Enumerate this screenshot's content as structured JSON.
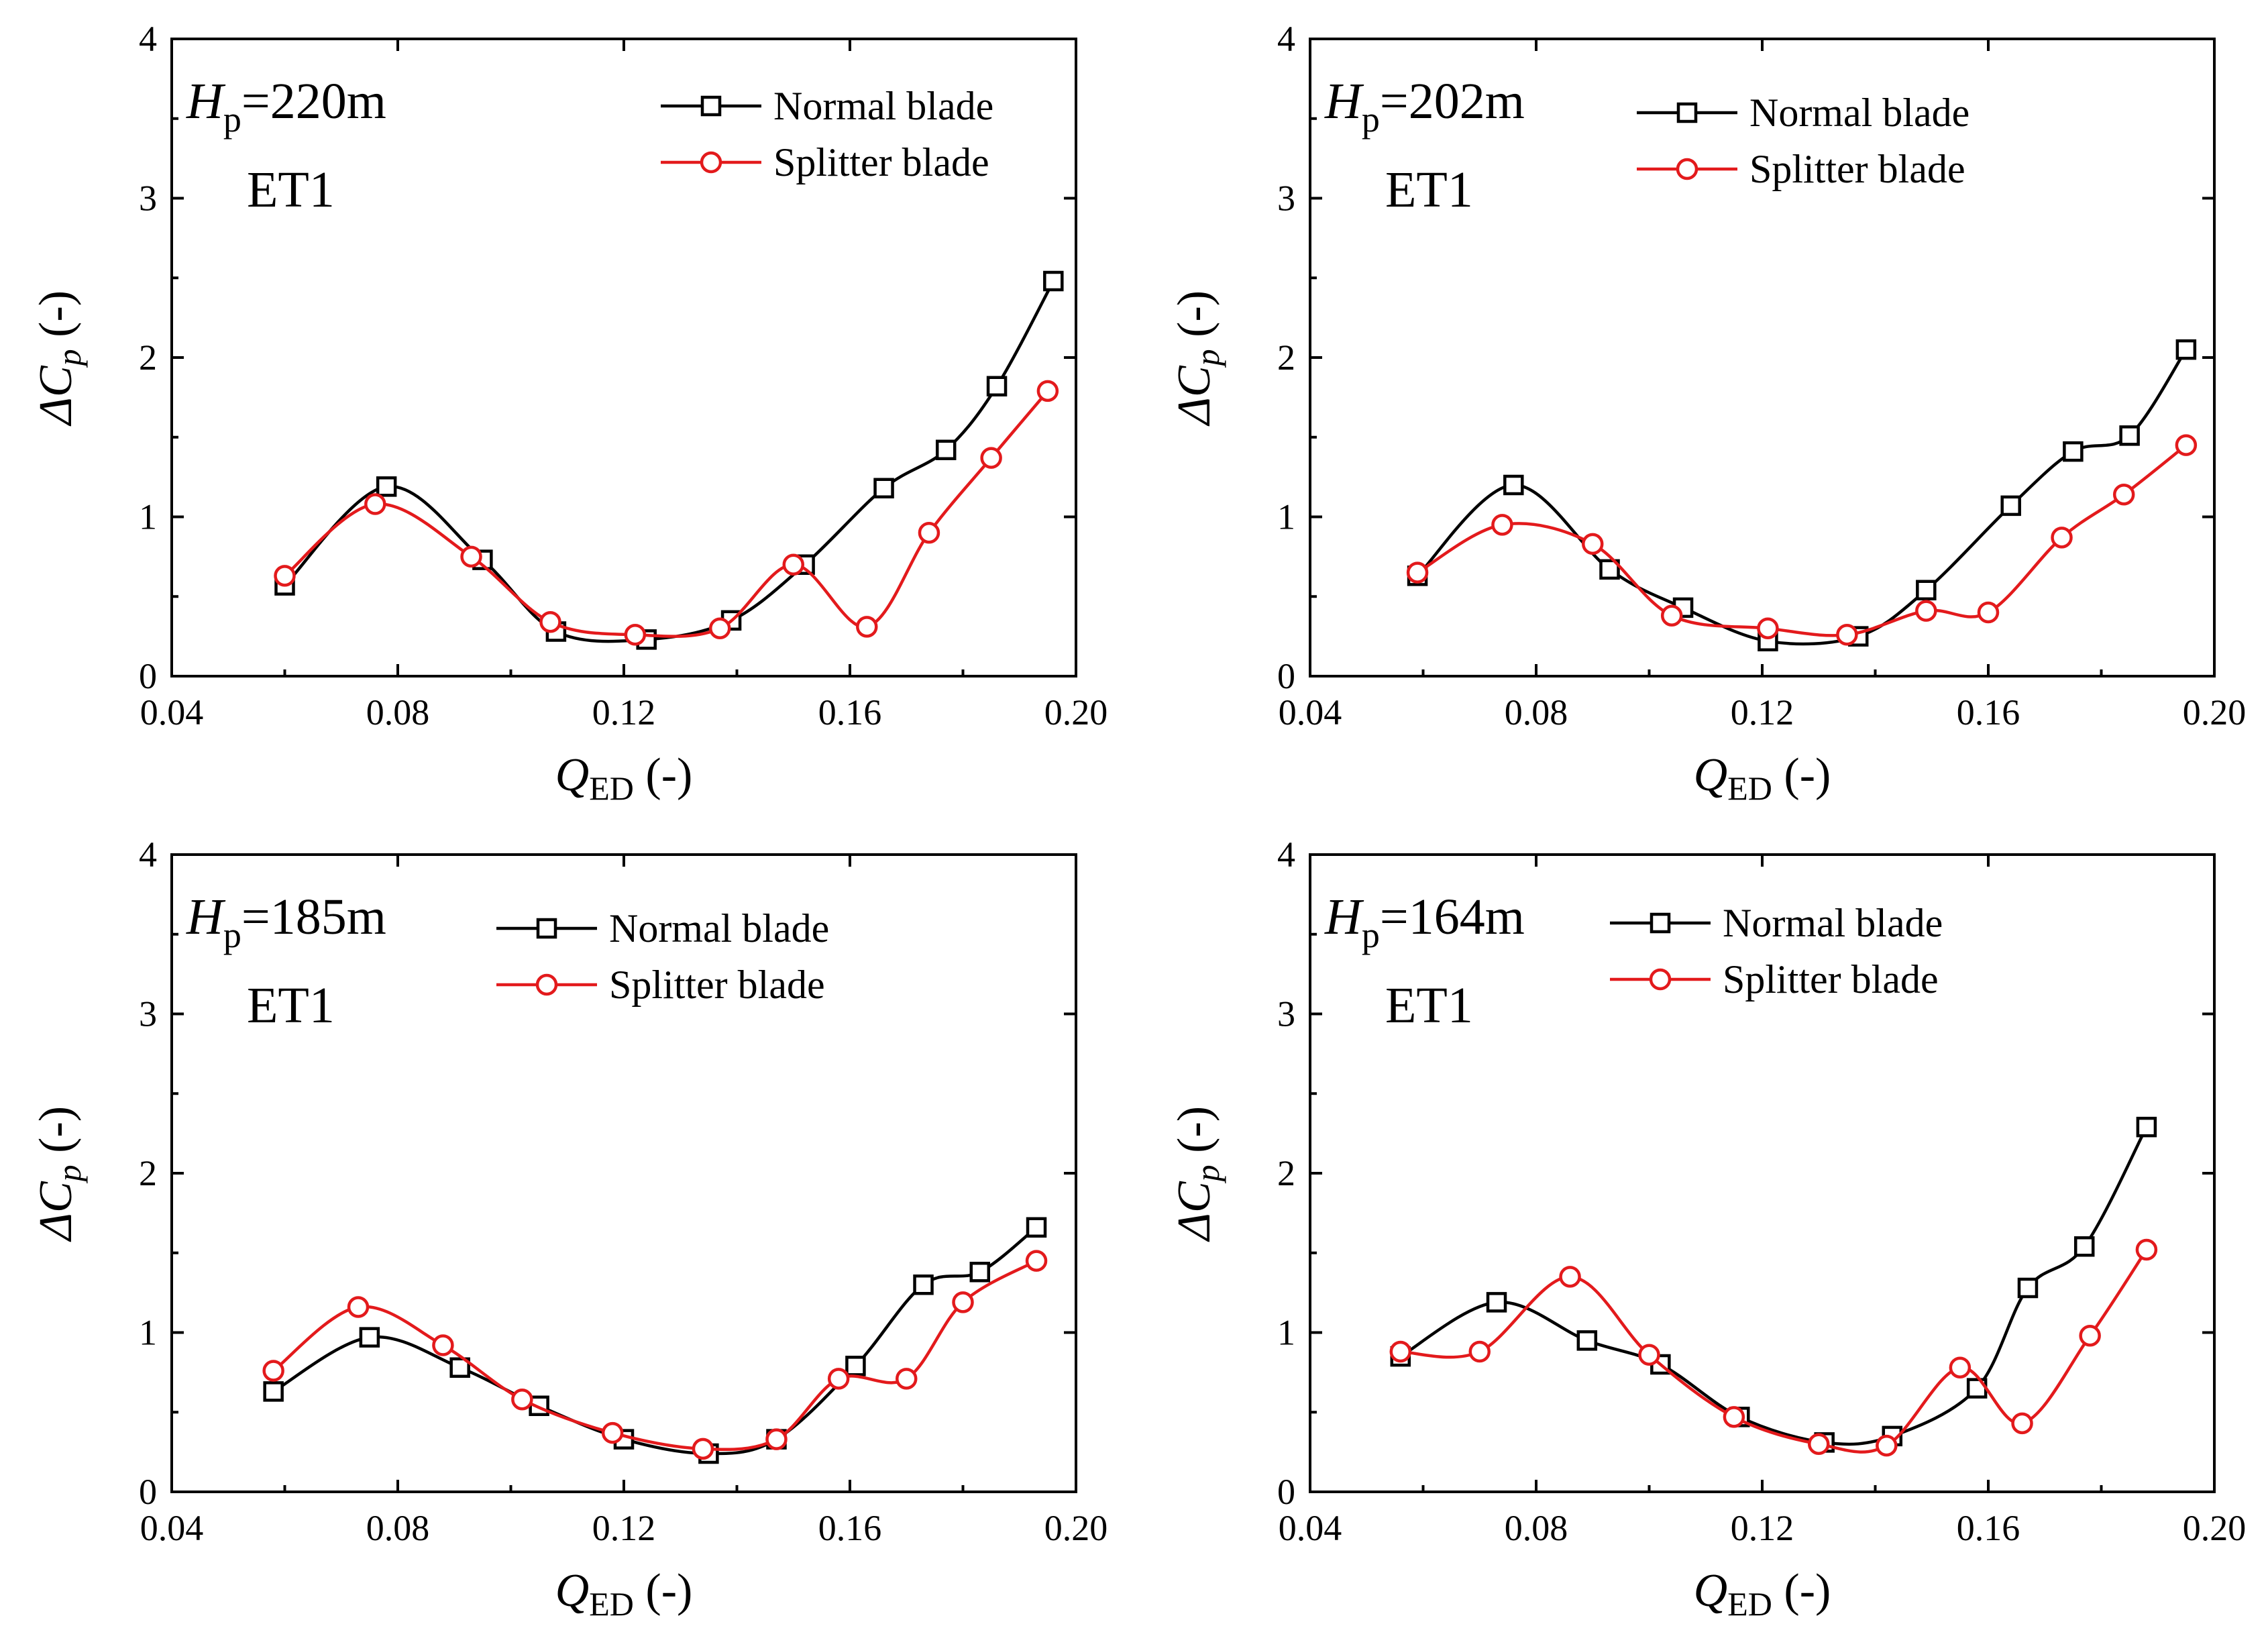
{
  "chart_data": [
    {
      "type": "line",
      "annotation": {
        "symbol": "H",
        "sub": "p",
        "value": "=220m",
        "case": "ET1"
      },
      "xlabel": {
        "symbol": "Q",
        "sub": "ED",
        "unit": " (-)"
      },
      "ylabel": {
        "symbol": "ΔC",
        "sub": "p",
        "unit": " (-)"
      },
      "xlim": [
        0.04,
        0.2
      ],
      "ylim": [
        0,
        4
      ],
      "xticks": [
        "0.04",
        "0.08",
        "0.12",
        "0.16",
        "0.20"
      ],
      "yticks": [
        "0",
        "1",
        "2",
        "3",
        "4"
      ],
      "series": [
        {
          "name": "Normal blade",
          "marker": "square",
          "color": "#000000",
          "x": [
            0.06,
            0.078,
            0.095,
            0.108,
            0.124,
            0.139,
            0.152,
            0.166,
            0.177,
            0.186,
            0.196
          ],
          "y": [
            0.57,
            1.19,
            0.73,
            0.28,
            0.23,
            0.35,
            0.7,
            1.18,
            1.42,
            1.82,
            2.48
          ]
        },
        {
          "name": "Splitter blade",
          "marker": "circle",
          "color": "#e31a1c",
          "x": [
            0.06,
            0.076,
            0.093,
            0.107,
            0.122,
            0.137,
            0.15,
            0.163,
            0.174,
            0.185,
            0.195
          ],
          "y": [
            0.63,
            1.08,
            0.75,
            0.34,
            0.26,
            0.3,
            0.7,
            0.31,
            0.9,
            1.37,
            1.79
          ]
        }
      ]
    },
    {
      "type": "line",
      "annotation": {
        "symbol": "H",
        "sub": "p",
        "value": "=202m",
        "case": "ET1"
      },
      "xlabel": {
        "symbol": "Q",
        "sub": "ED",
        "unit": " (-)"
      },
      "ylabel": {
        "symbol": "ΔC",
        "sub": "p",
        "unit": " (-)"
      },
      "xlim": [
        0.04,
        0.2
      ],
      "ylim": [
        0,
        4
      ],
      "xticks": [
        "0.04",
        "0.08",
        "0.12",
        "0.16",
        "0.20"
      ],
      "yticks": [
        "0",
        "1",
        "2",
        "3",
        "4"
      ],
      "series": [
        {
          "name": "Normal blade",
          "marker": "square",
          "color": "#000000",
          "x": [
            0.059,
            0.076,
            0.093,
            0.106,
            0.121,
            0.137,
            0.149,
            0.164,
            0.175,
            0.185,
            0.195
          ],
          "y": [
            0.63,
            1.2,
            0.67,
            0.43,
            0.22,
            0.25,
            0.54,
            1.07,
            1.41,
            1.51,
            2.05
          ]
        },
        {
          "name": "Splitter blade",
          "marker": "circle",
          "color": "#e31a1c",
          "x": [
            0.059,
            0.074,
            0.09,
            0.104,
            0.121,
            0.135,
            0.149,
            0.16,
            0.173,
            0.184,
            0.195
          ],
          "y": [
            0.65,
            0.95,
            0.83,
            0.38,
            0.3,
            0.26,
            0.41,
            0.4,
            0.87,
            1.14,
            1.45
          ]
        }
      ]
    },
    {
      "type": "line",
      "annotation": {
        "symbol": "H",
        "sub": "p",
        "value": "=185m",
        "case": "ET1"
      },
      "xlabel": {
        "symbol": "Q",
        "sub": "ED",
        "unit": " (-)"
      },
      "ylabel": {
        "symbol": "ΔC",
        "sub": "p",
        "unit": " (-)"
      },
      "xlim": [
        0.04,
        0.2
      ],
      "ylim": [
        0,
        4
      ],
      "xticks": [
        "0.04",
        "0.08",
        "0.12",
        "0.16",
        "0.20"
      ],
      "yticks": [
        "0",
        "1",
        "2",
        "3",
        "4"
      ],
      "series": [
        {
          "name": "Normal blade",
          "marker": "square",
          "color": "#000000",
          "x": [
            0.058,
            0.075,
            0.091,
            0.105,
            0.12,
            0.135,
            0.147,
            0.161,
            0.173,
            0.183,
            0.193
          ],
          "y": [
            0.63,
            0.97,
            0.78,
            0.54,
            0.33,
            0.24,
            0.33,
            0.79,
            1.3,
            1.38,
            1.66
          ]
        },
        {
          "name": "Splitter blade",
          "marker": "circle",
          "color": "#e31a1c",
          "x": [
            0.058,
            0.073,
            0.088,
            0.102,
            0.118,
            0.134,
            0.147,
            0.158,
            0.17,
            0.18,
            0.193
          ],
          "y": [
            0.76,
            1.16,
            0.92,
            0.58,
            0.37,
            0.27,
            0.33,
            0.71,
            0.71,
            1.19,
            1.45
          ]
        }
      ]
    },
    {
      "type": "line",
      "annotation": {
        "symbol": "H",
        "sub": "p",
        "value": "=164m",
        "case": "ET1"
      },
      "xlabel": {
        "symbol": "Q",
        "sub": "ED",
        "unit": " (-)"
      },
      "ylabel": {
        "symbol": "ΔC",
        "sub": "p",
        "unit": " (-)"
      },
      "xlim": [
        0.04,
        0.2
      ],
      "ylim": [
        0,
        4
      ],
      "xticks": [
        "0.04",
        "0.08",
        "0.12",
        "0.16",
        "0.20"
      ],
      "yticks": [
        "0",
        "1",
        "2",
        "3",
        "4"
      ],
      "series": [
        {
          "name": "Normal blade",
          "marker": "square",
          "color": "#000000",
          "x": [
            0.056,
            0.073,
            0.089,
            0.102,
            0.116,
            0.131,
            0.143,
            0.158,
            0.167,
            0.177,
            0.188
          ],
          "y": [
            0.85,
            1.19,
            0.95,
            0.8,
            0.47,
            0.31,
            0.35,
            0.65,
            1.28,
            1.54,
            2.29
          ]
        },
        {
          "name": "Splitter blade",
          "marker": "circle",
          "color": "#e31a1c",
          "x": [
            0.056,
            0.07,
            0.086,
            0.1,
            0.115,
            0.13,
            0.142,
            0.155,
            0.166,
            0.178,
            0.188
          ],
          "y": [
            0.88,
            0.88,
            1.35,
            0.86,
            0.47,
            0.3,
            0.29,
            0.78,
            0.43,
            0.98,
            1.52
          ]
        }
      ]
    }
  ]
}
